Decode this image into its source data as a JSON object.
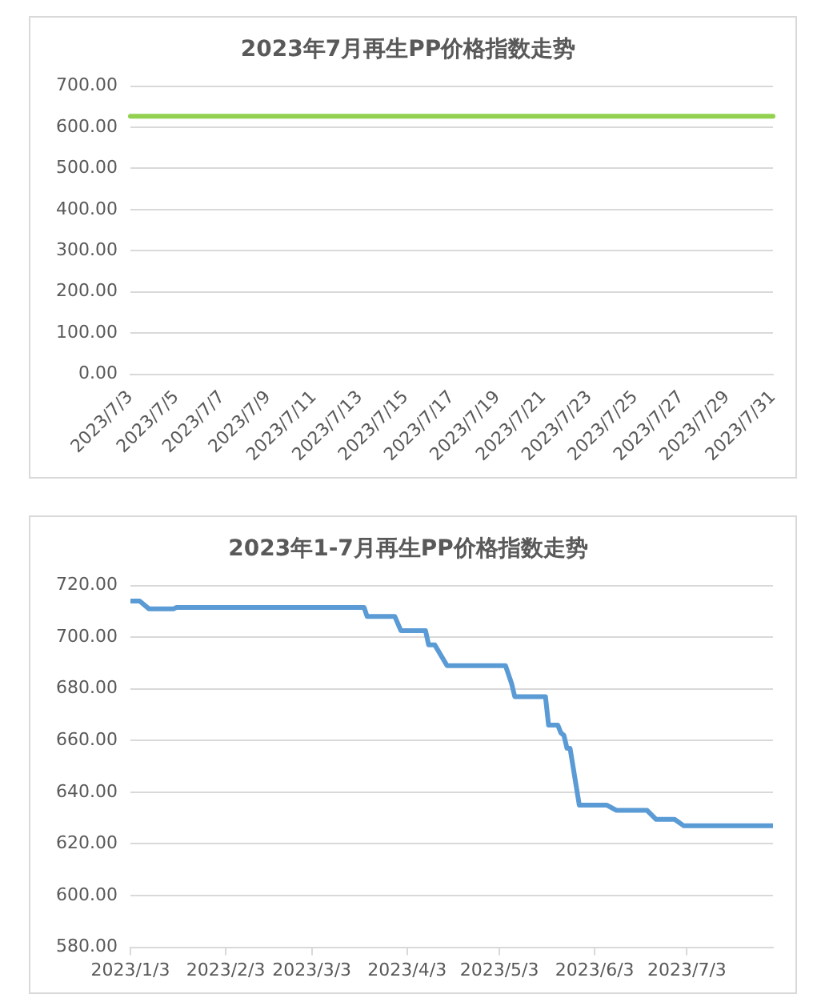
{
  "chart_data": [
    {
      "type": "line",
      "title": "2023年7月再生PP价格指数走势",
      "categories": [
        "2023/7/3",
        null,
        "2023/7/5",
        null,
        "2023/7/7",
        null,
        "2023/7/9",
        null,
        "2023/7/11",
        null,
        "2023/7/13",
        null,
        "2023/7/15",
        null,
        "2023/7/17",
        null,
        "2023/7/19",
        null,
        "2023/7/21",
        null,
        "2023/7/23",
        null,
        "2023/7/25",
        null,
        "2023/7/27",
        null,
        "2023/7/29",
        null,
        "2023/7/31"
      ],
      "series": [
        {
          "color": "#92d050",
          "values": [
            627,
            627,
            627,
            627,
            627,
            627,
            627,
            627,
            627,
            627,
            627,
            627,
            627,
            627,
            627,
            627,
            627,
            627,
            627,
            627,
            627,
            627,
            627,
            627,
            627,
            627,
            627,
            627,
            627
          ]
        }
      ],
      "ylim": [
        0,
        700
      ],
      "yticks": [
        {
          "value": 0,
          "label": "0.00"
        },
        {
          "value": 100,
          "label": "100.00"
        },
        {
          "value": 200,
          "label": "200.00"
        },
        {
          "value": 300,
          "label": "300.00"
        },
        {
          "value": 400,
          "label": "400.00"
        },
        {
          "value": 500,
          "label": "500.00"
        },
        {
          "value": 600,
          "label": "600.00"
        },
        {
          "value": 700,
          "label": "700.00"
        }
      ],
      "grid": "y",
      "legend": false,
      "marker": "none"
    },
    {
      "type": "line",
      "title": "2023年1-7月再生PP价格指数走势",
      "x": [
        "2023-01-03",
        "2023-01-06",
        "2023-01-09",
        "2023-01-17",
        "2023-01-18",
        "2023-03-20",
        "2023-03-21",
        "2023-03-30",
        "2023-04-01",
        "2023-04-09",
        "2023-04-10",
        "2023-04-12",
        "2023-04-16",
        "2023-05-05",
        "2023-05-07",
        "2023-05-08",
        "2023-05-18",
        "2023-05-19",
        "2023-05-22",
        "2023-05-23",
        "2023-05-24",
        "2023-05-25",
        "2023-05-26",
        "2023-05-29",
        "2023-06-07",
        "2023-06-10",
        "2023-06-20",
        "2023-06-23",
        "2023-06-29",
        "2023-07-02",
        "2023-07-31"
      ],
      "series": [
        {
          "color": "#5b9bd5",
          "values": [
            714,
            714,
            711,
            711,
            711.5,
            711.5,
            708,
            708,
            702.5,
            702.5,
            697,
            697,
            689,
            689,
            682,
            677,
            677,
            666,
            666,
            663,
            662,
            657,
            657,
            635,
            635,
            633,
            633,
            629.5,
            629.5,
            627,
            627
          ]
        }
      ],
      "xlim": [
        "2023-01-03",
        "2023-07-31"
      ],
      "xticks": [
        {
          "value": "2023-01-03",
          "label": "2023/1/3"
        },
        {
          "value": "2023-02-03",
          "label": "2023/2/3"
        },
        {
          "value": "2023-03-03",
          "label": "2023/3/3"
        },
        {
          "value": "2023-04-03",
          "label": "2023/4/3"
        },
        {
          "value": "2023-05-03",
          "label": "2023/5/3"
        },
        {
          "value": "2023-06-03",
          "label": "2023/6/3"
        },
        {
          "value": "2023-07-03",
          "label": "2023/7/3"
        }
      ],
      "ylim": [
        580,
        720
      ],
      "yticks": [
        {
          "value": 580,
          "label": "580.00"
        },
        {
          "value": 600,
          "label": "600.00"
        },
        {
          "value": 620,
          "label": "620.00"
        },
        {
          "value": 640,
          "label": "640.00"
        },
        {
          "value": 660,
          "label": "660.00"
        },
        {
          "value": 680,
          "label": "680.00"
        },
        {
          "value": 700,
          "label": "700.00"
        },
        {
          "value": 720,
          "label": "720.00"
        }
      ],
      "grid": "y",
      "legend": false,
      "marker": "none"
    }
  ]
}
